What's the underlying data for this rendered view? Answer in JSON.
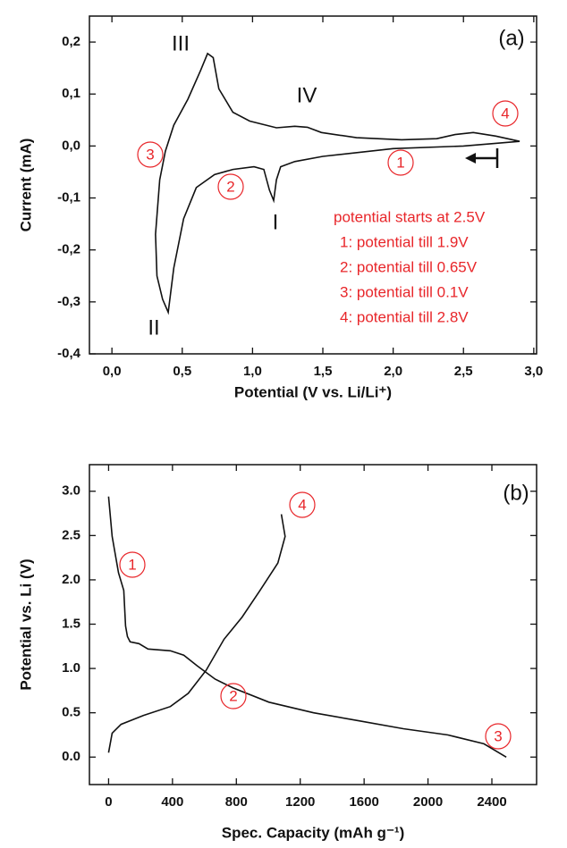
{
  "chart_data": [
    {
      "type": "line",
      "xlabel": "Potential (V vs. Li/Li⁺)",
      "ylabel": "Current (mA)",
      "xlim": [
        -0.16,
        3.02
      ],
      "ylim": [
        -0.4,
        0.25
      ],
      "xticks": [
        {
          "value": 0,
          "label": "0,0"
        },
        {
          "value": 0.5,
          "label": "0,5"
        },
        {
          "value": 1,
          "label": "1,0"
        },
        {
          "value": 1.5,
          "label": "1,5"
        },
        {
          "value": 2,
          "label": "2,0"
        },
        {
          "value": 2.5,
          "label": "2,5"
        },
        {
          "value": 3,
          "label": "3,0"
        }
      ],
      "yticks": [
        {
          "value": 0.2,
          "label": "0,2"
        },
        {
          "value": 0.1,
          "label": "0,1"
        },
        {
          "value": 0,
          "label": "0,0"
        },
        {
          "value": -0.1,
          "label": "-0,1"
        },
        {
          "value": -0.2,
          "label": "-0,2"
        },
        {
          "value": -0.3,
          "label": "-0,3"
        },
        {
          "value": -0.4,
          "label": "-0,4"
        }
      ],
      "series": [
        {
          "color": "#111111",
          "x": [
            2.9,
            2.5,
            2.0,
            1.5,
            1.3,
            1.2,
            1.17,
            1.15,
            1.12,
            1.08,
            1.01,
            0.86,
            0.73,
            0.6,
            0.51,
            0.44,
            0.4,
            0.36,
            0.32,
            0.31,
            0.34,
            0.38,
            0.44,
            0.54,
            0.63,
            0.68,
            0.72,
            0.76,
            0.86,
            0.98,
            1.17,
            1.3,
            1.39,
            1.49,
            1.74,
            2.06,
            2.31,
            2.44,
            2.57,
            2.73,
            2.9
          ],
          "values": [
            0.009,
            0.0,
            -0.005,
            -0.02,
            -0.03,
            -0.04,
            -0.065,
            -0.105,
            -0.085,
            -0.045,
            -0.04,
            -0.045,
            -0.055,
            -0.08,
            -0.14,
            -0.235,
            -0.32,
            -0.295,
            -0.25,
            -0.17,
            -0.065,
            -0.01,
            0.04,
            0.09,
            0.145,
            0.178,
            0.17,
            0.11,
            0.065,
            0.048,
            0.035,
            0.038,
            0.036,
            0.026,
            0.016,
            0.012,
            0.014,
            0.022,
            0.026,
            0.019,
            0.009
          ]
        }
      ],
      "labels": [
        "(a)",
        "III",
        "IV",
        "I",
        "II"
      ],
      "circled": [
        "1",
        "2",
        "3",
        "4"
      ],
      "notes": [
        "potential starts at 2.5V",
        "1: potential till 1.9V",
        "2: potential till 0.65V",
        "3: potential till 0.1V",
        "4: potential till 2.8V"
      ]
    },
    {
      "type": "line",
      "xlabel": "Spec. Capacity (mAh g⁻¹)",
      "ylabel": "Potential vs. Li (V)",
      "xlim": [
        -120,
        2680
      ],
      "ylim": [
        -0.31,
        3.3
      ],
      "xticks": [
        0,
        400,
        800,
        1200,
        1600,
        2000,
        2400
      ],
      "yticks": [
        {
          "value": 3,
          "label": "3.0"
        },
        2.5,
        {
          "value": 2,
          "label": "2.0"
        },
        1.5,
        {
          "value": 1,
          "label": "1.0"
        },
        0.5,
        {
          "value": 0,
          "label": "0.0"
        }
      ],
      "series": [
        {
          "color": "#111111",
          "x": [
            0,
            22,
            62,
            95,
            106,
            118,
            135,
            190,
            247,
            387,
            471,
            555,
            667,
            780,
            1004,
            1284,
            1565,
            1845,
            2125,
            2350,
            2490
          ],
          "values": [
            2.94,
            2.49,
            2.08,
            1.88,
            1.48,
            1.36,
            1.3,
            1.28,
            1.22,
            1.2,
            1.15,
            1.03,
            0.88,
            0.78,
            0.62,
            0.5,
            0.41,
            0.32,
            0.25,
            0.15,
            0.0
          ]
        },
        {
          "color": "#111111",
          "x": [
            0,
            22,
            78,
            219,
            387,
            499,
            611,
            723,
            836,
            948,
            1060,
            1105,
            1082
          ],
          "values": [
            0.05,
            0.27,
            0.37,
            0.47,
            0.57,
            0.72,
            0.98,
            1.33,
            1.58,
            1.88,
            2.19,
            2.49,
            2.74
          ]
        }
      ],
      "labels": [
        "(b)"
      ],
      "circled": [
        "1",
        "2",
        "3",
        "4"
      ]
    }
  ]
}
